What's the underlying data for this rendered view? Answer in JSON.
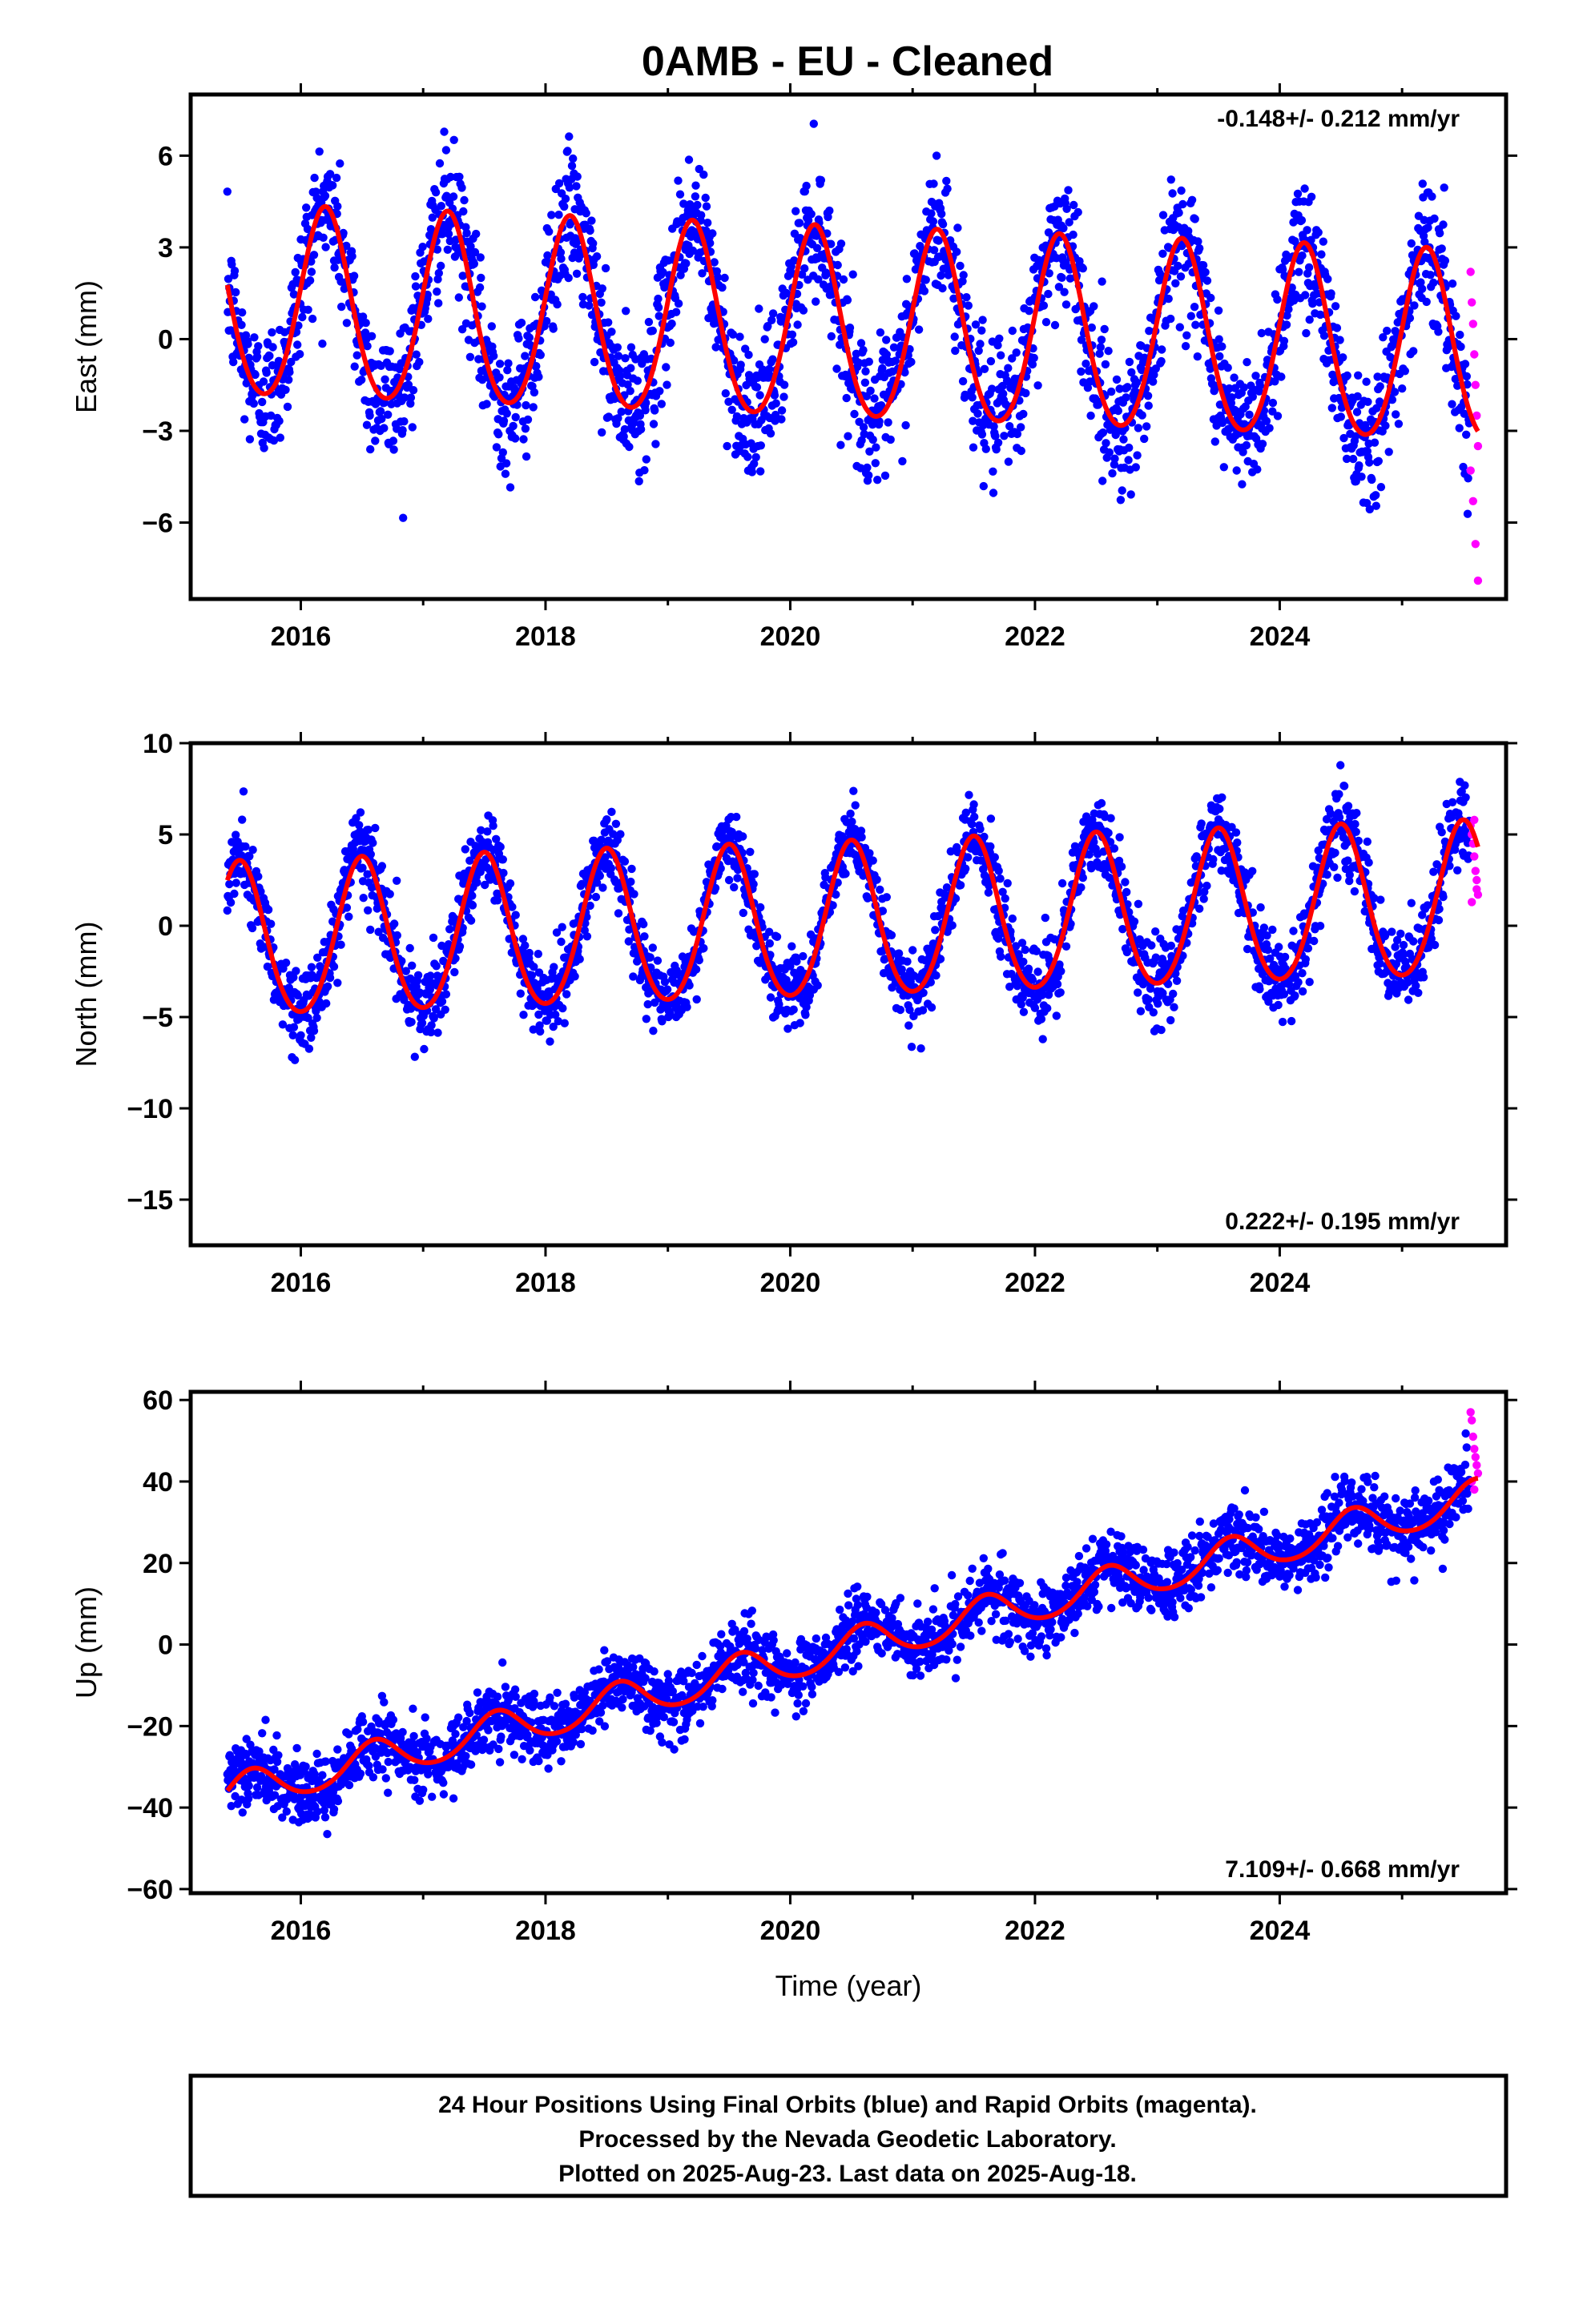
{
  "title": "0AMB  - EU - Cleaned",
  "footer": {
    "lines": [
      "24 Hour Positions Using Final Orbits (blue) and Rapid Orbits (magenta).",
      "Processed by the Nevada Geodetic Laboratory.",
      "Plotted on 2025-Aug-23. Last data on 2025-Aug-18."
    ]
  },
  "colors": {
    "final_orbits": "#0000ff",
    "rapid_orbits": "#ff00ff",
    "model_fit": "#ff0000"
  },
  "chart_data": [
    {
      "type": "scatter",
      "title": "0AMB  - EU - Cleaned",
      "xlabel": "",
      "ylabel": "East (mm)",
      "xlim": [
        2015.1,
        2025.85
      ],
      "ylim": [
        -8.5,
        8.0
      ],
      "xticks": [
        2016,
        2018,
        2020,
        2022,
        2024
      ],
      "xticklabels": [
        "2016",
        "2018",
        "2020",
        "2022",
        "2024"
      ],
      "yticks": [
        -6,
        -3,
        0,
        3,
        6
      ],
      "yticklabels": [
        "−6",
        "−3",
        "0",
        "3",
        "6"
      ],
      "rate_label": "-0.148+/- 0.212 mm/yr",
      "rate_position": "top-right",
      "series": [
        {
          "role": "model",
          "trend": -0.148,
          "offset": 0.3,
          "annual_amp": 3.1,
          "annual_peak": 0.2,
          "semiannual_amp": 0.3,
          "start": 2015.4,
          "end": 2025.62
        },
        {
          "role": "final",
          "noise": 1.1,
          "start": 2015.4,
          "end": 2025.55,
          "step": 0.004
        },
        {
          "role": "rapid",
          "x": [
            2025.56,
            2025.57,
            2025.58,
            2025.59,
            2025.6,
            2025.61,
            2025.62,
            2025.56,
            2025.58,
            2025.6,
            2025.62
          ],
          "y": [
            2.2,
            1.2,
            0.5,
            -0.5,
            -1.5,
            -2.5,
            -3.5,
            -4.3,
            -5.3,
            -6.7,
            -7.9
          ]
        }
      ]
    },
    {
      "type": "scatter",
      "xlabel": "",
      "ylabel": "North (mm)",
      "xlim": [
        2015.1,
        2025.85
      ],
      "ylim": [
        -17.5,
        10.0
      ],
      "xticks": [
        2016,
        2018,
        2020,
        2022,
        2024
      ],
      "xticklabels": [
        "2016",
        "2018",
        "2020",
        "2022",
        "2024"
      ],
      "yticks": [
        -15,
        -10,
        -5,
        0,
        5,
        10
      ],
      "yticklabels": [
        "−15",
        "−10",
        "−5",
        "0",
        "5",
        "10"
      ],
      "rate_label": "0.222+/- 0.195 mm/yr",
      "rate_position": "bottom-right",
      "series": [
        {
          "role": "model",
          "trend": 0.222,
          "offset": 0.1,
          "annual_amp": 4.2,
          "annual_peak": 0.5,
          "semiannual_amp": 0.4,
          "start": 2015.4,
          "end": 2025.62
        },
        {
          "role": "final",
          "noise": 1.1,
          "start": 2015.4,
          "end": 2025.55,
          "step": 0.004
        },
        {
          "role": "rapid",
          "x": [
            2025.56,
            2025.57,
            2025.58,
            2025.59,
            2025.6,
            2025.61,
            2025.62,
            2025.57,
            2025.59,
            2025.61
          ],
          "y": [
            5.5,
            5.0,
            4.5,
            3.8,
            3.0,
            2.5,
            1.7,
            1.3,
            5.8,
            2.0
          ]
        }
      ]
    },
    {
      "type": "scatter",
      "xlabel": "Time (year)",
      "ylabel": "Up (mm)",
      "xlim": [
        2015.1,
        2025.85
      ],
      "ylim": [
        -61.0,
        62.0
      ],
      "xticks": [
        2016,
        2018,
        2020,
        2022,
        2024
      ],
      "xticklabels": [
        "2016",
        "2018",
        "2020",
        "2022",
        "2024"
      ],
      "yticks": [
        -60,
        -40,
        -20,
        0,
        20,
        40,
        60
      ],
      "yticklabels": [
        "−60",
        "−40",
        "−20",
        "0",
        "20",
        "40",
        "60"
      ],
      "rate_label": "7.109+/- 0.668 mm/yr",
      "rate_position": "bottom-right",
      "series": [
        {
          "role": "model",
          "trend": 7.109,
          "offset": -0.5,
          "annual_amp": 4.5,
          "annual_peak": 0.6,
          "semiannual_amp": 0.5,
          "start": 2015.4,
          "end": 2025.62
        },
        {
          "role": "final",
          "noise": 4.2,
          "start": 2015.4,
          "end": 2025.55,
          "step": 0.004
        },
        {
          "role": "rapid",
          "x": [
            2025.56,
            2025.57,
            2025.58,
            2025.59,
            2025.6,
            2025.61,
            2025.62,
            2025.57,
            2025.59
          ],
          "y": [
            57.0,
            55.0,
            51.0,
            48.0,
            46.0,
            44.0,
            42.0,
            40.0,
            38.0
          ]
        }
      ]
    }
  ]
}
